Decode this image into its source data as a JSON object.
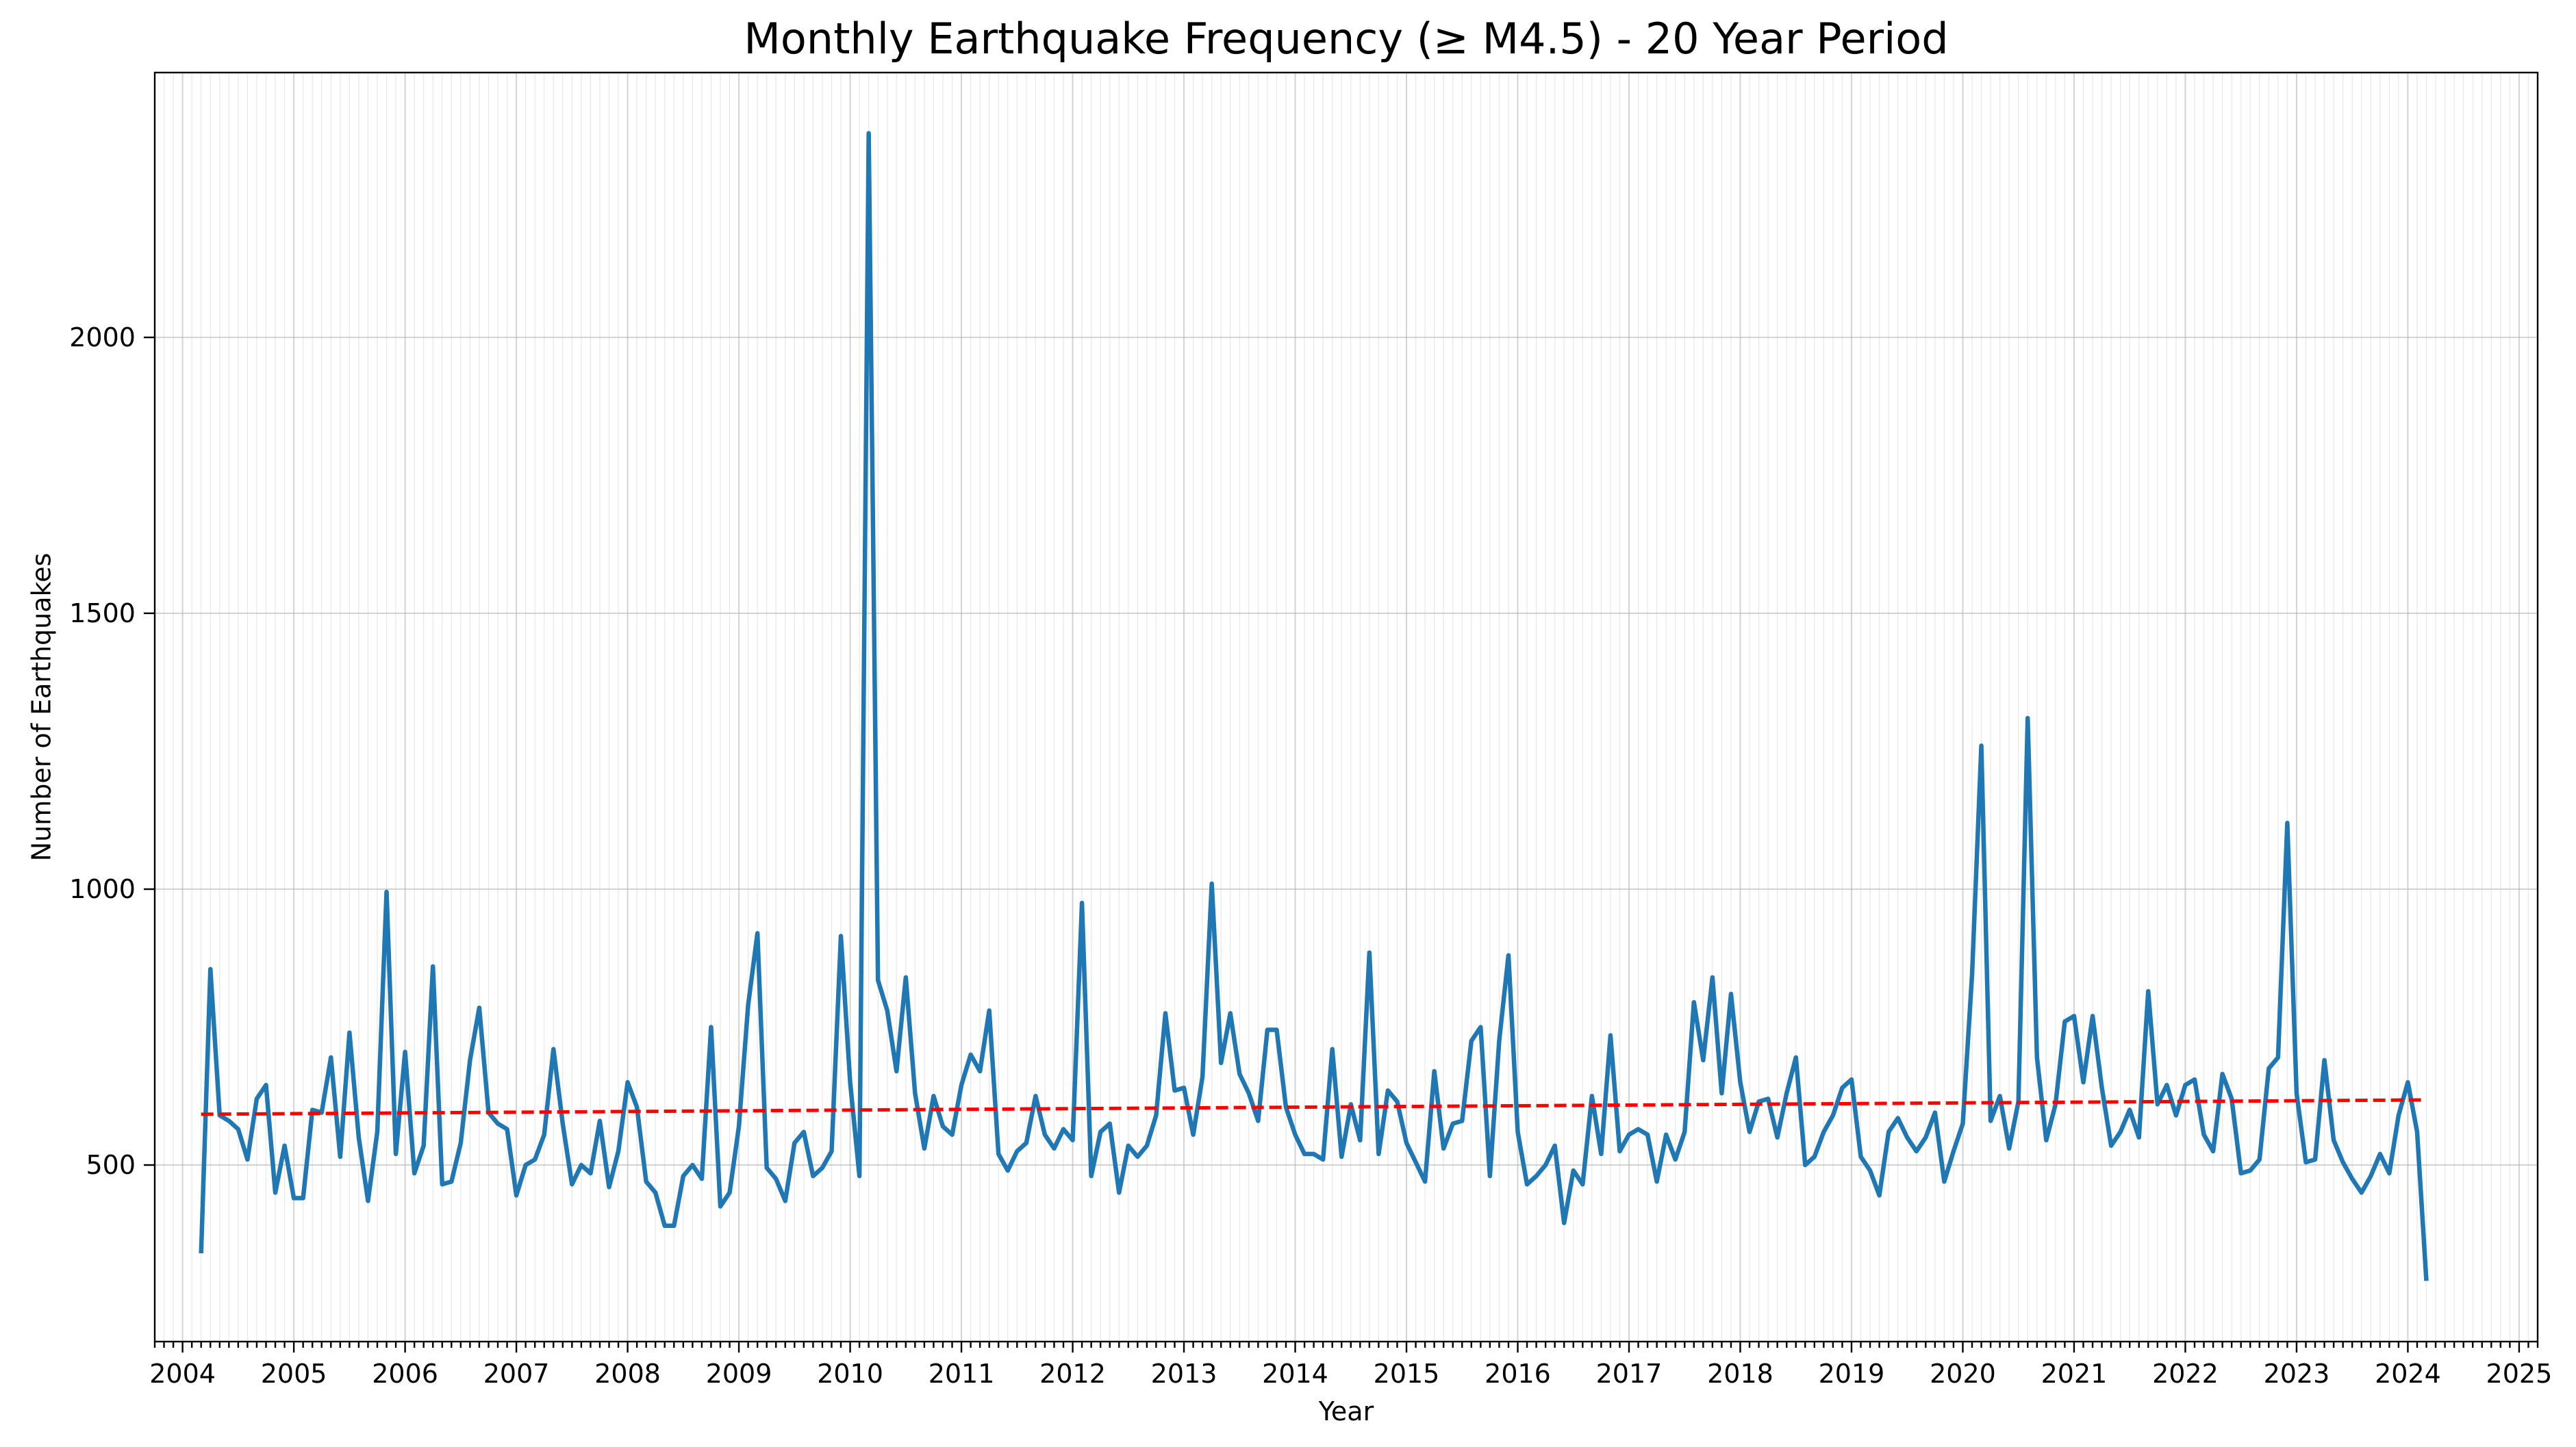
{
  "chart_data": {
    "type": "line",
    "title": "Monthly Earthquake Frequency (≥ M4.5) - 20 Year Period",
    "xlabel": "Year",
    "ylabel": "Number of Earthquakes",
    "x_axis": "date",
    "xlim": [
      "2003-10-01",
      "2025-03-01"
    ],
    "ylim": [
      180,
      2480
    ],
    "x_ticks": [
      "2004",
      "2005",
      "2006",
      "2007",
      "2008",
      "2009",
      "2010",
      "2011",
      "2012",
      "2013",
      "2014",
      "2015",
      "2016",
      "2017",
      "2018",
      "2019",
      "2020",
      "2021",
      "2022",
      "2023",
      "2024",
      "2025"
    ],
    "y_ticks": [
      500,
      1000,
      1500,
      2000
    ],
    "grid": true,
    "minor_x_ticks": "monthly",
    "start": "2004-03",
    "series": [
      {
        "color": "#1f77b4",
        "style": "solid",
        "values": [
          340,
          855,
          590,
          580,
          565,
          510,
          620,
          645,
          450,
          535,
          440,
          440,
          600,
          595,
          695,
          515,
          740,
          550,
          435,
          560,
          995,
          520,
          705,
          485,
          535,
          860,
          465,
          470,
          540,
          690,
          785,
          595,
          575,
          565,
          445,
          500,
          510,
          555,
          710,
          575,
          465,
          500,
          485,
          580,
          460,
          525,
          650,
          605,
          470,
          450,
          390,
          390,
          480,
          500,
          475,
          750,
          425,
          450,
          570,
          790,
          920,
          495,
          475,
          435,
          540,
          560,
          480,
          495,
          525,
          915,
          650,
          480,
          2370,
          835,
          780,
          670,
          840,
          630,
          530,
          625,
          570,
          555,
          645,
          700,
          670,
          780,
          520,
          490,
          525,
          540,
          625,
          555,
          530,
          565,
          545,
          975,
          480,
          560,
          575,
          450,
          535,
          515,
          535,
          590,
          775,
          635,
          640,
          555,
          660,
          1010,
          685,
          775,
          665,
          630,
          580,
          745,
          745,
          605,
          555,
          520,
          520,
          510,
          710,
          515,
          610,
          545,
          885,
          520,
          635,
          615,
          540,
          505,
          470,
          670,
          530,
          575,
          580,
          725,
          750,
          480,
          725,
          880,
          560,
          465,
          480,
          500,
          535,
          395,
          490,
          465,
          625,
          520,
          735,
          525,
          555,
          565,
          555,
          470,
          555,
          510,
          560,
          795,
          690,
          840,
          630,
          810,
          650,
          560,
          615,
          620,
          550,
          630,
          695,
          500,
          515,
          560,
          590,
          640,
          655,
          515,
          490,
          445,
          560,
          585,
          550,
          525,
          550,
          595,
          470,
          525,
          575,
          845,
          1260,
          580,
          625,
          530,
          615,
          1310,
          695,
          545,
          610,
          760,
          770,
          650,
          770,
          640,
          535,
          560,
          600,
          550,
          815,
          610,
          645,
          590,
          645,
          655,
          555,
          525,
          665,
          620,
          485,
          490,
          510,
          675,
          695,
          1120,
          630,
          505,
          510,
          690,
          545,
          505,
          475,
          450,
          480,
          520,
          485,
          590,
          650,
          560,
          290
        ]
      },
      {
        "color": "#ff0000",
        "style": "dashed",
        "x": [
          "2004-03",
          "2024-03"
        ],
        "values": [
          592,
          618
        ]
      }
    ]
  }
}
